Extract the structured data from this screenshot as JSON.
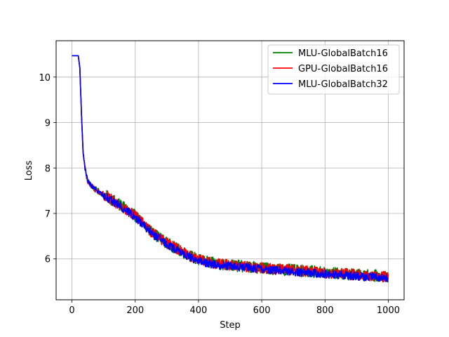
{
  "chart_data": {
    "type": "line",
    "xlabel": "Step",
    "ylabel": "Loss",
    "xlim": [
      -50,
      1050
    ],
    "ylim": [
      5.1,
      10.8
    ],
    "xticks": [
      0,
      200,
      400,
      600,
      800,
      1000
    ],
    "yticks": [
      6,
      7,
      8,
      9,
      10
    ],
    "grid": true,
    "legend_position": "top-right",
    "x": [
      0,
      20,
      25,
      30,
      35,
      40,
      45,
      50,
      60,
      70,
      80,
      100,
      150,
      200,
      250,
      300,
      350,
      400,
      450,
      500,
      600,
      700,
      800,
      900,
      1000
    ],
    "series": [
      {
        "name": "MLU-GlobalBatch16",
        "color": "#008000",
        "values": [
          10.47,
          10.47,
          10.2,
          9.2,
          8.4,
          8.05,
          7.85,
          7.72,
          7.62,
          7.55,
          7.5,
          7.42,
          7.2,
          6.95,
          6.6,
          6.35,
          6.15,
          5.98,
          5.9,
          5.86,
          5.8,
          5.75,
          5.7,
          5.65,
          5.62
        ],
        "noise": 0.13
      },
      {
        "name": "GPU-GlobalBatch16",
        "color": "#ff0000",
        "values": [
          10.47,
          10.47,
          10.2,
          9.2,
          8.4,
          8.05,
          7.85,
          7.72,
          7.62,
          7.55,
          7.5,
          7.42,
          7.18,
          6.95,
          6.6,
          6.35,
          6.15,
          5.98,
          5.9,
          5.86,
          5.8,
          5.75,
          5.7,
          5.65,
          5.6
        ],
        "noise": 0.12
      },
      {
        "name": "MLU-GlobalBatch32",
        "color": "#0000ff",
        "values": [
          10.47,
          10.47,
          10.2,
          9.2,
          8.4,
          8.05,
          7.85,
          7.72,
          7.62,
          7.55,
          7.5,
          7.4,
          7.17,
          6.92,
          6.58,
          6.32,
          6.12,
          5.95,
          5.87,
          5.84,
          5.78,
          5.72,
          5.67,
          5.62,
          5.58
        ],
        "noise": 0.09
      }
    ]
  }
}
